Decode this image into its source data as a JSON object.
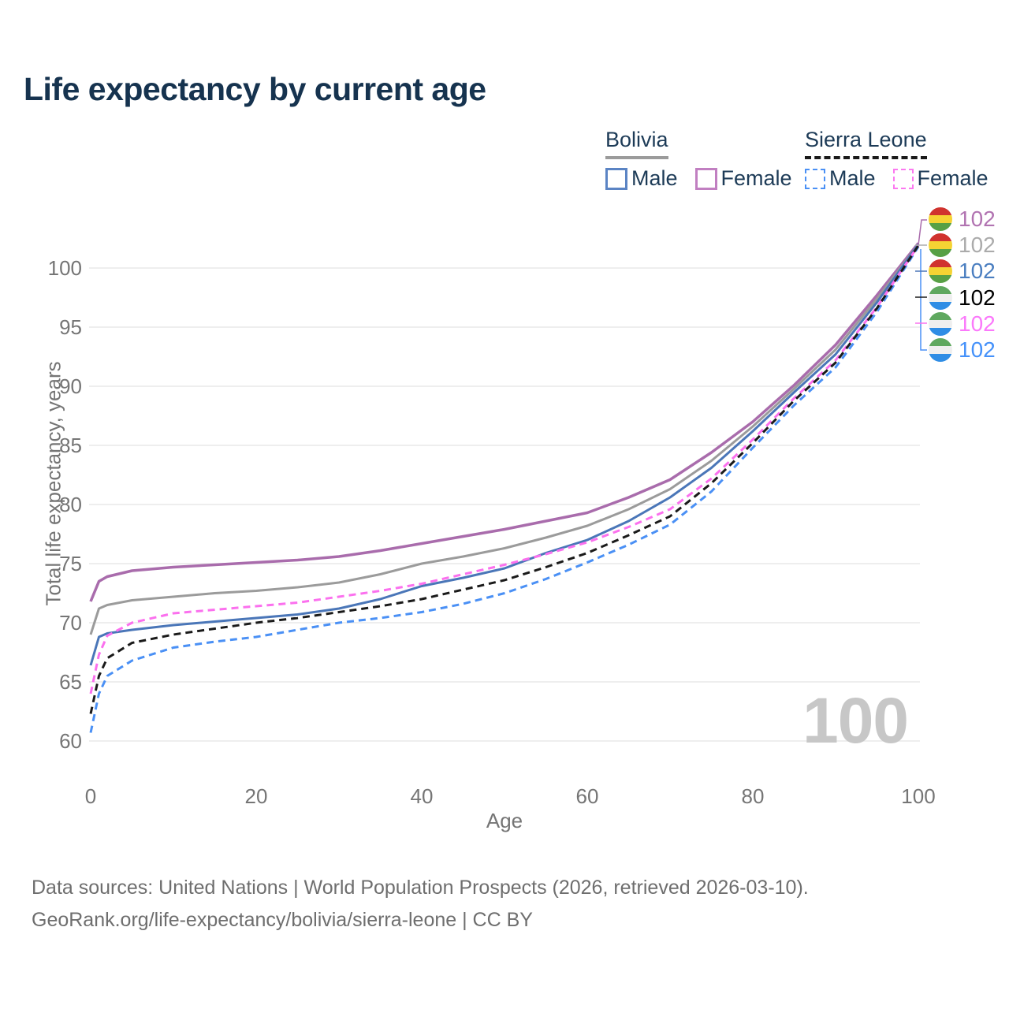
{
  "title": "Life expectancy by current age",
  "legend": {
    "groups": [
      {
        "country": "Bolivia",
        "line_color": "#9b9b9b",
        "line_style": "solid",
        "items": [
          {
            "label": "Male",
            "color": "#5b84c4",
            "dashed": false
          },
          {
            "label": "Female",
            "color": "#c17fc1",
            "dashed": false
          }
        ]
      },
      {
        "country": "Sierra Leone",
        "line_color": "#1a1a1a",
        "line_style": "dashed",
        "items": [
          {
            "label": "Male",
            "color": "#4a90f5",
            "dashed": true
          },
          {
            "label": "Female",
            "color": "#fb79f0",
            "dashed": true
          }
        ]
      }
    ]
  },
  "watermark": "100",
  "footer": {
    "line1": "Data sources: United Nations | World Population Prospects (2026, retrieved 2026-03-10).",
    "line2": "GeoRank.org/life-expectancy/bolivia/sierra-leone | CC BY"
  },
  "chart_data": {
    "type": "line",
    "title": "Life expectancy by current age",
    "xlabel": "Age",
    "ylabel": "Total life expectancy, years",
    "xlim": [
      0,
      100
    ],
    "ylim": [
      60,
      102.5
    ],
    "grid": "horizontal",
    "legend_position": "top-right",
    "x_ticks": [
      0,
      20,
      40,
      60,
      80,
      100
    ],
    "y_ticks": [
      60,
      65,
      70,
      75,
      80,
      85,
      90,
      95,
      100
    ],
    "ages": [
      0,
      1,
      2,
      5,
      10,
      15,
      20,
      25,
      30,
      35,
      40,
      45,
      50,
      55,
      60,
      65,
      70,
      75,
      80,
      85,
      90,
      95,
      100
    ],
    "series": [
      {
        "name": "Bolivia Female",
        "color": "#a96cac",
        "dash": null,
        "width": 3.5,
        "values": [
          71.8,
          73.5,
          73.9,
          74.4,
          74.7,
          74.9,
          75.1,
          75.3,
          75.6,
          76.1,
          76.7,
          77.3,
          77.9,
          78.6,
          79.3,
          80.6,
          82.1,
          84.4,
          87.0,
          90.1,
          93.5,
          97.7,
          102.1
        ]
      },
      {
        "name": "Bolivia Both sexes",
        "color": "#9b9b9b",
        "dash": null,
        "width": 3,
        "values": [
          69.0,
          71.2,
          71.5,
          71.9,
          72.2,
          72.5,
          72.7,
          73.0,
          73.4,
          74.1,
          75.0,
          75.6,
          76.3,
          77.2,
          78.2,
          79.6,
          81.3,
          83.7,
          86.6,
          89.8,
          93.1,
          97.4,
          102.0
        ]
      },
      {
        "name": "Bolivia Male",
        "color": "#4a76b8",
        "dash": null,
        "width": 3,
        "values": [
          66.4,
          68.8,
          69.1,
          69.4,
          69.8,
          70.1,
          70.4,
          70.7,
          71.2,
          72.0,
          73.1,
          73.8,
          74.6,
          75.9,
          77.0,
          78.6,
          80.6,
          83.1,
          86.2,
          89.5,
          92.7,
          97.1,
          102.0
        ]
      },
      {
        "name": "Sierra Leone Male",
        "color": "#4a90f5",
        "dash": "9 6",
        "width": 3,
        "values": [
          60.7,
          64.0,
          65.5,
          66.8,
          67.9,
          68.4,
          68.8,
          69.4,
          70.0,
          70.4,
          70.9,
          71.6,
          72.5,
          73.7,
          75.1,
          76.6,
          78.3,
          81.1,
          84.8,
          88.4,
          91.6,
          96.3,
          101.8
        ]
      },
      {
        "name": "Sierra Leone Female",
        "color": "#fb70ee",
        "dash": "9 6",
        "width": 3,
        "values": [
          64.0,
          67.3,
          68.9,
          70.0,
          70.8,
          71.1,
          71.4,
          71.7,
          72.2,
          72.7,
          73.3,
          74.1,
          74.9,
          75.8,
          76.8,
          78.1,
          79.6,
          82.2,
          85.5,
          89.0,
          92.2,
          96.7,
          101.9
        ]
      },
      {
        "name": "Sierra Leone Both sexes",
        "color": "#1a1a1a",
        "dash": "9 6",
        "width": 3,
        "values": [
          62.3,
          65.5,
          67.0,
          68.3,
          69.0,
          69.5,
          70.0,
          70.4,
          70.9,
          71.4,
          72.0,
          72.8,
          73.6,
          74.7,
          75.9,
          77.4,
          79.0,
          81.8,
          85.2,
          88.8,
          92.0,
          96.6,
          101.9
        ]
      }
    ],
    "end_labels": [
      {
        "value": "102",
        "series": "Bolivia Female",
        "flag": "bolivia",
        "color": "#b173b1"
      },
      {
        "value": "102",
        "series": "Bolivia Both sexes",
        "flag": "bolivia",
        "color": "#ababab"
      },
      {
        "value": "102",
        "series": "Bolivia Male",
        "flag": "bolivia",
        "color": "#4a7ec0"
      },
      {
        "value": "102",
        "series": "Sierra Leone Both sexes",
        "flag": "sierra-leone",
        "color": "#000000"
      },
      {
        "value": "102",
        "series": "Sierra Leone Female",
        "flag": "sierra-leone",
        "color": "#fb79fb"
      },
      {
        "value": "102",
        "series": "Sierra Leone Male",
        "flag": "sierra-leone",
        "color": "#4491fa"
      }
    ],
    "flags": {
      "bolivia": [
        "#d0332e",
        "#f5d333",
        "#58a045"
      ],
      "sierra-leone": [
        "#5fa85f",
        "#efefef",
        "#2f8de5"
      ]
    }
  }
}
